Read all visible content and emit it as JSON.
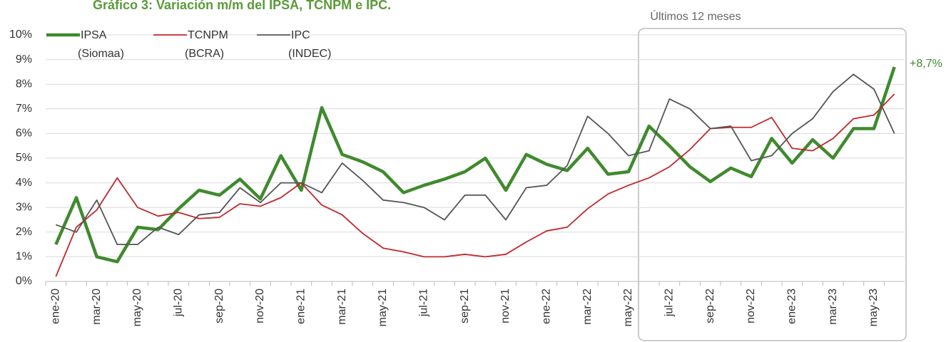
{
  "chart_data": {
    "type": "line",
    "title": "Gráfico 3: Variación m/m del IPSA, TCNPM e IPC.",
    "categories": [
      "ene-20",
      null,
      "mar-20",
      null,
      "may-20",
      null,
      "jul-20",
      null,
      "sep-20",
      null,
      "nov-20",
      null,
      "ene-21",
      null,
      "mar-21",
      null,
      "may-21",
      null,
      "jul-21",
      null,
      "sep-21",
      null,
      "nov-21",
      null,
      "ene-22",
      null,
      "mar-22",
      null,
      "may-22",
      null,
      "jul-22",
      null,
      "sep-22",
      null,
      "nov-22",
      null,
      "ene-23",
      null,
      "mar-23",
      null,
      "may-23",
      null
    ],
    "series": [
      {
        "name": "IPSA",
        "source": "(Siomaa)",
        "color": "#3f8a2e",
        "width": 4.5,
        "values": [
          1.5,
          3.4,
          1.0,
          0.8,
          2.2,
          2.1,
          2.95,
          3.7,
          3.5,
          4.15,
          3.35,
          5.1,
          3.7,
          7.05,
          5.15,
          4.85,
          4.45,
          3.6,
          3.9,
          4.15,
          4.45,
          5.0,
          3.7,
          5.15,
          4.75,
          4.5,
          5.4,
          4.35,
          4.45,
          6.3,
          5.5,
          4.65,
          4.05,
          4.6,
          4.25,
          5.8,
          4.8,
          5.75,
          5.0,
          6.2,
          6.2,
          8.7
        ]
      },
      {
        "name": "TCNPM",
        "source": "(BCRA)",
        "color": "#c0282d",
        "width": 1.8,
        "values": [
          0.2,
          2.2,
          2.9,
          4.2,
          3.0,
          2.65,
          2.8,
          2.55,
          2.6,
          3.15,
          3.05,
          3.4,
          4.0,
          3.1,
          2.7,
          1.95,
          1.35,
          1.2,
          1.0,
          1.0,
          1.1,
          1.0,
          1.1,
          1.6,
          2.05,
          2.2,
          2.95,
          3.55,
          3.9,
          4.2,
          4.65,
          5.35,
          6.2,
          6.25,
          6.25,
          6.65,
          5.4,
          5.3,
          5.8,
          6.6,
          6.75,
          7.6
        ]
      },
      {
        "name": "IPC",
        "source": "(INDEC)",
        "color": "#555555",
        "width": 1.8,
        "values": [
          2.3,
          2.0,
          3.3,
          1.5,
          1.5,
          2.2,
          1.9,
          2.7,
          2.8,
          3.8,
          3.2,
          4.0,
          4.0,
          3.6,
          4.8,
          4.1,
          3.3,
          3.2,
          3.0,
          2.5,
          3.5,
          3.5,
          2.5,
          3.8,
          3.9,
          4.7,
          6.7,
          6.0,
          5.1,
          5.3,
          7.4,
          7.0,
          6.2,
          6.3,
          4.9,
          5.1,
          6.0,
          6.6,
          7.7,
          8.4,
          7.8,
          6.0
        ]
      }
    ],
    "ylim": [
      0,
      10
    ],
    "yticks": [
      {
        "value": 0,
        "label": "0%"
      },
      {
        "value": 1,
        "label": "1%"
      },
      {
        "value": 2,
        "label": "2%"
      },
      {
        "value": 3,
        "label": "3%"
      },
      {
        "value": 4,
        "label": "4%"
      },
      {
        "value": 5,
        "label": "5%"
      },
      {
        "value": 6,
        "label": "6%"
      },
      {
        "value": 7,
        "label": "7%"
      },
      {
        "value": 8,
        "label": "8%"
      },
      {
        "value": 9,
        "label": "9%"
      },
      {
        "value": 10,
        "label": "10%"
      }
    ],
    "grid": true,
    "annotations": {
      "last_value": "+8,7%",
      "highlight": "Últimos 12 meses"
    }
  }
}
